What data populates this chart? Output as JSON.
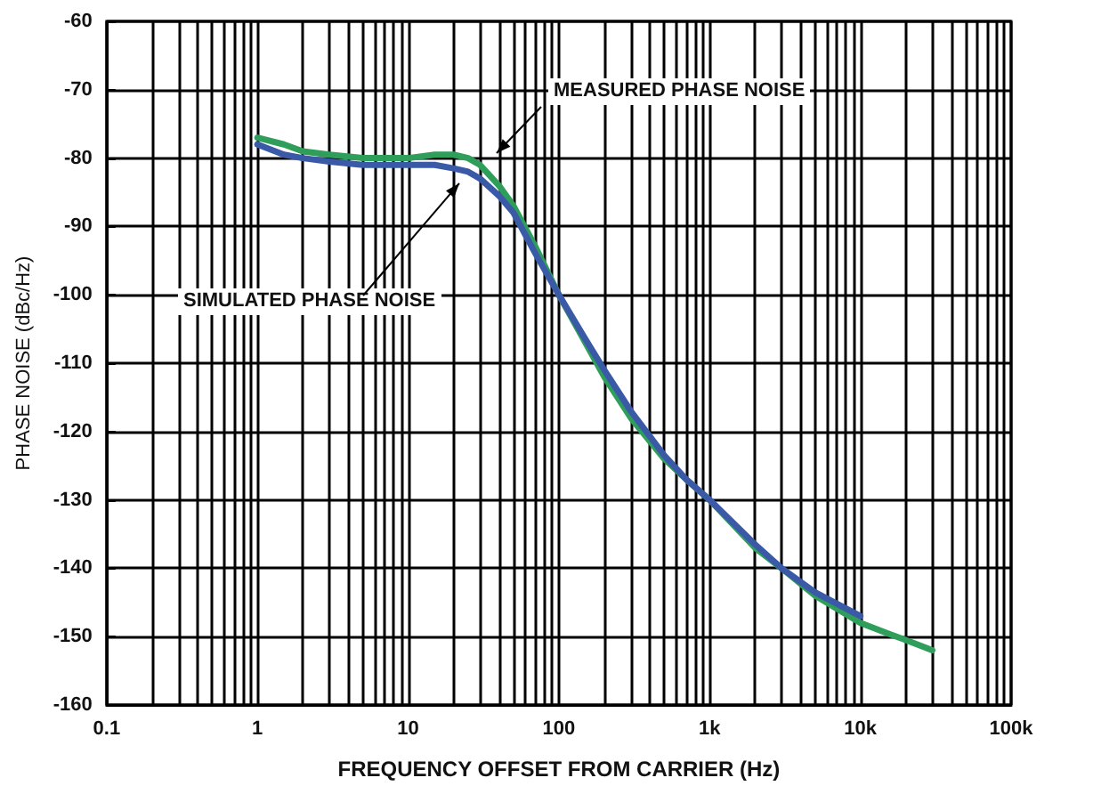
{
  "chart_data": {
    "type": "line",
    "xlabel": "FREQUENCY OFFSET FROM CARRIER (Hz)",
    "ylabel": "PHASE NOISE (dBc/Hz)",
    "annotations": [
      "MEASURED PHASE NOISE",
      "SIMULATED PHASE NOISE"
    ],
    "log": "x",
    "xlim": [
      0.1,
      100000
    ],
    "xticks": [
      0.1,
      1,
      10,
      100,
      {
        "value": 1000,
        "label": "1k"
      },
      {
        "value": 10000,
        "label": "10k"
      },
      {
        "value": 100000,
        "label": "100k"
      }
    ],
    "ylim": [
      -160,
      -60
    ],
    "yticks": [
      -160,
      -150,
      -140,
      -130,
      -120,
      -110,
      -100,
      -90,
      -80,
      -70,
      -60
    ],
    "grid": true,
    "line_style": "solid",
    "marker": "none",
    "series": [
      {
        "color": "#2e9e5a",
        "x": [
          1,
          1.5,
          2,
          3,
          5,
          7,
          10,
          15,
          20,
          25,
          30,
          40,
          50,
          70,
          100,
          150,
          200,
          300,
          500,
          700,
          1000,
          2000,
          3000,
          5000,
          10000,
          15000,
          20000,
          30000
        ],
        "values": [
          -77,
          -78,
          -79,
          -79.5,
          -80,
          -80,
          -80,
          -79.5,
          -79.5,
          -80,
          -81,
          -84,
          -87,
          -93,
          -100,
          -107,
          -112,
          -118,
          -124,
          -127,
          -130,
          -137,
          -140,
          -144,
          -148,
          -149.5,
          -150.5,
          -152
        ]
      },
      {
        "color": "#3a5aa8",
        "x": [
          1,
          1.5,
          2,
          3,
          5,
          7,
          10,
          15,
          20,
          25,
          30,
          40,
          50,
          70,
          100,
          150,
          200,
          300,
          500,
          700,
          1000,
          2000,
          3000,
          5000,
          10000
        ],
        "values": [
          -78,
          -79.5,
          -80,
          -80.5,
          -81,
          -81,
          -81,
          -81,
          -81.5,
          -82,
          -83,
          -85.5,
          -88,
          -94,
          -100,
          -106.5,
          -111,
          -117,
          -123.5,
          -127,
          -130,
          -136.5,
          -140,
          -143.5,
          -147
        ]
      }
    ]
  }
}
